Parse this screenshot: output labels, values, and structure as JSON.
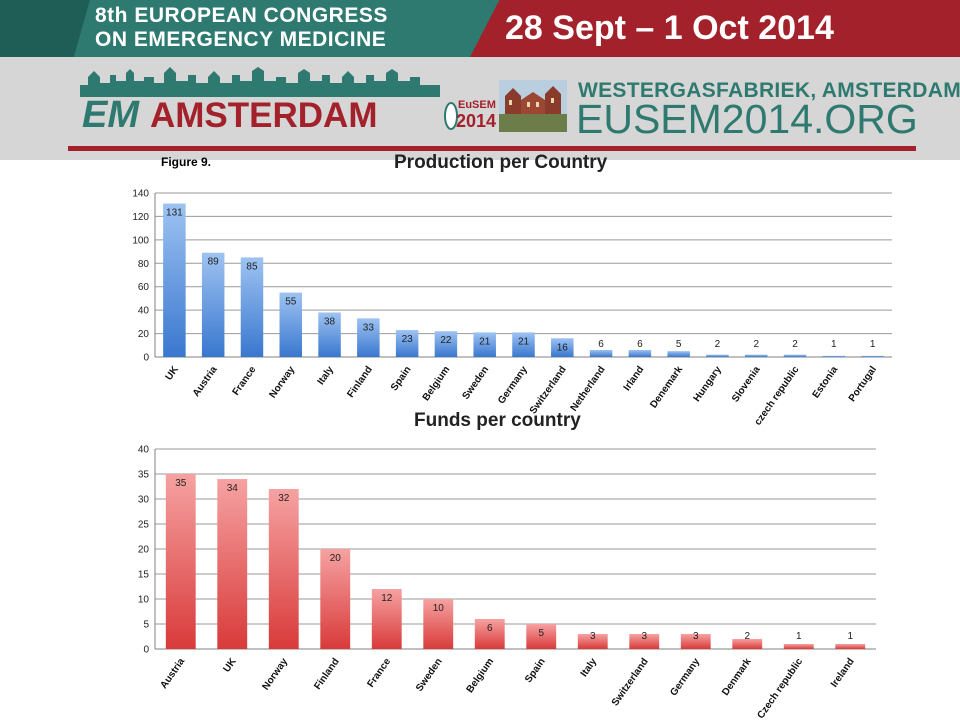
{
  "header": {
    "congress_line1": "8th EUROPEAN CONGRESS",
    "congress_line2": "ON EMERGENCY MEDICINE",
    "dates": "28 Sept – 1 Oct 2014",
    "logo_em": "EM",
    "logo_city": "AMSTERDAM",
    "logo_org": "EuSEM",
    "logo_year": "2014",
    "venue": "WESTERGASFABRIEK, AMSTERDAM",
    "website": "EUSEM2014.ORG"
  },
  "colors": {
    "teal": "#2f7a70",
    "crimson": "#a3212b",
    "banner_grey": "#d6d6d6",
    "production_bar": "#4a86d6",
    "funds_bar": "#df4a4a"
  },
  "figure_label": "Figure 9.",
  "chart_data": [
    {
      "type": "bar",
      "title": "Production per Country",
      "categories": [
        "UK",
        "Austria",
        "France",
        "Norway",
        "Italy",
        "Finland",
        "Spain",
        "Belgium",
        "Sweden",
        "Germany",
        "Switzerland",
        "Netherland",
        "Irland",
        "Denemark",
        "Hungary",
        "Slovenia",
        "czech republic",
        "Estonia",
        "Portugal"
      ],
      "values": [
        131,
        89,
        85,
        55,
        38,
        33,
        23,
        22,
        21,
        21,
        16,
        6,
        6,
        5,
        2,
        2,
        2,
        1,
        1
      ],
      "ylim": [
        0,
        140
      ],
      "yticks": [
        0,
        20,
        40,
        60,
        80,
        100,
        120,
        140
      ],
      "grid": true,
      "legend": "none",
      "data_labels": true
    },
    {
      "type": "bar",
      "title": "Funds per country",
      "categories": [
        "Austria",
        "UK",
        "Norway",
        "Finland",
        "France",
        "Sweden",
        "Belgium",
        "Spain",
        "Italy",
        "Switzerland",
        "Germany",
        "Denmark",
        "Czech republic",
        "Ireland"
      ],
      "values": [
        35,
        34,
        32,
        20,
        12,
        10,
        6,
        5,
        3,
        3,
        3,
        2,
        1,
        1
      ],
      "ylim": [
        0,
        40
      ],
      "yticks": [
        0,
        5,
        10,
        15,
        20,
        25,
        30,
        35,
        40
      ],
      "grid": true,
      "legend": "none",
      "data_labels": true
    }
  ]
}
